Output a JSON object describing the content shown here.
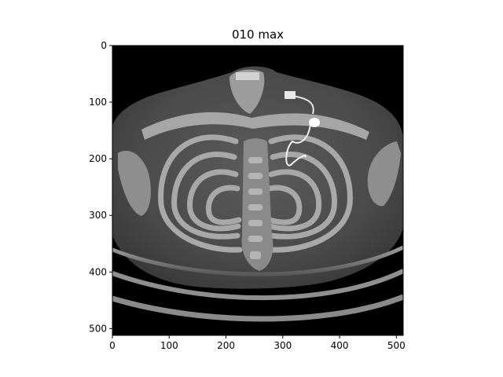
{
  "figure": {
    "title": "010 max",
    "background": "#ffffff",
    "image_background": "#000000"
  },
  "chart_data": {
    "type": "image",
    "title": "010 max",
    "xlabel": "",
    "ylabel": "",
    "x_ticks": [
      0,
      100,
      200,
      300,
      400,
      500
    ],
    "y_ticks": [
      0,
      100,
      200,
      300,
      400,
      500
    ],
    "xlim": [
      0,
      512
    ],
    "ylim": [
      512,
      0
    ],
    "colormap": "gray",
    "grid": false,
    "content": "axial CT maximum intensity projection of chest showing rib cage, spine and pacemaker leads"
  }
}
